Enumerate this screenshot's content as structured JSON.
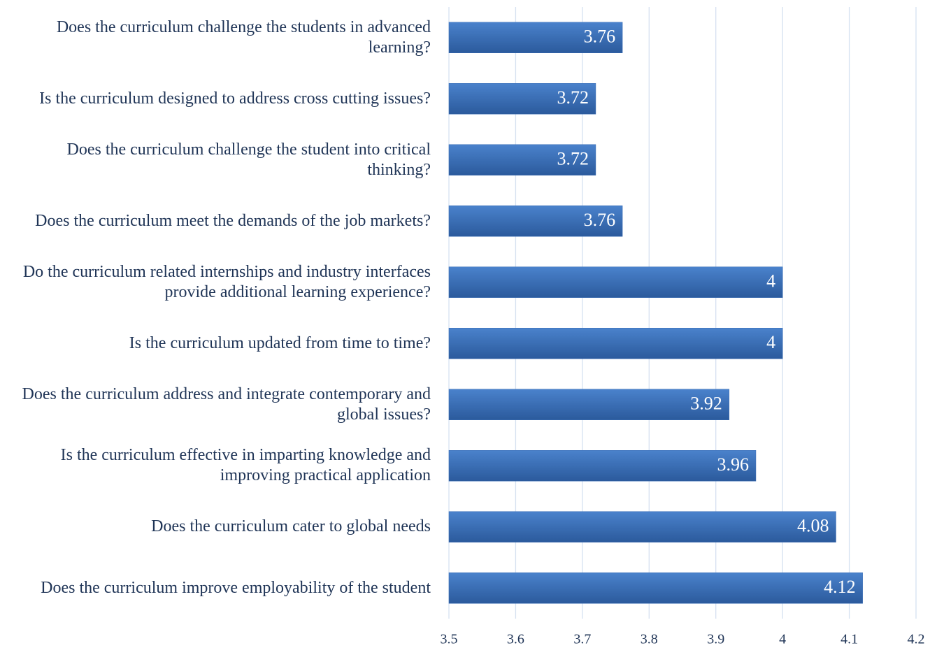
{
  "chart_data": {
    "type": "bar",
    "orientation": "horizontal",
    "categories": [
      "Does the curriculum challenge the students in advanced learning?",
      "Is the curriculum designed to address cross cutting issues?",
      "Does the curriculum challenge the student into critical thinking?",
      "Does the curriculum meet the demands of the job markets?",
      "Do the curriculum related internships and industry interfaces provide additional learning experience?",
      "Is the curriculum updated from time to time?",
      "Does the curriculum address and integrate contemporary and global issues?",
      "Is the curriculum effective in imparting knowledge and improving practical application",
      "Does the curriculum cater to global needs",
      "Does the curriculum improve employability of the student"
    ],
    "values": [
      3.76,
      3.72,
      3.72,
      3.76,
      4,
      4,
      3.92,
      3.96,
      4.08,
      4.12
    ],
    "color": "#3a6db5",
    "xlim": [
      3.5,
      4.2
    ],
    "xticks": [
      3.5,
      3.6,
      3.7,
      3.8,
      3.9,
      4,
      4.1,
      4.2
    ],
    "grid": true
  }
}
